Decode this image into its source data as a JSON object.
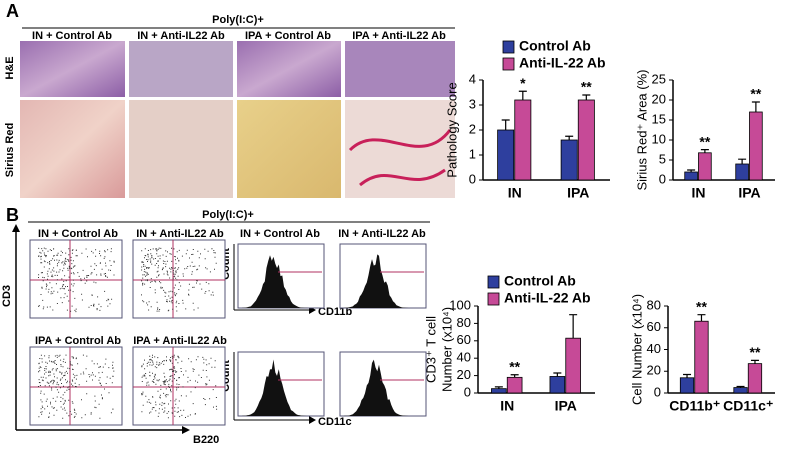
{
  "panel_a": {
    "label": "A",
    "treatment": "Poly(I:C)+",
    "columns": [
      "IN + Control Ab",
      "IN + Anti-IL22 Ab",
      "IPA + Control Ab",
      "IPA + Anti-IL22 Ab"
    ],
    "rows": [
      "H&E",
      "Sirius Red"
    ]
  },
  "panel_b": {
    "label": "B",
    "treatment": "Poly(I:C)+",
    "scatter_titles": [
      "IN + Control Ab",
      "IN + Anti-IL22 Ab",
      "IPA + Control Ab",
      "IPA + Anti-IL22 Ab"
    ],
    "scatter_y_axis": "CD3",
    "scatter_x_axis": "B220",
    "histogram_titles": [
      "IN + Control Ab",
      "IN + Anti-IL22 Ab"
    ],
    "histogram_y_axis": "Count",
    "histogram_x_axes": [
      "CD11b",
      "CD11c"
    ]
  },
  "chart_data": [
    {
      "type": "bar",
      "ylabel": [
        "Pathology Score"
      ],
      "categories": [
        "IN",
        "IPA"
      ],
      "ylim": [
        0,
        4
      ],
      "yticks": [
        0,
        1,
        2,
        3,
        4
      ],
      "legend": true,
      "series": [
        {
          "name": "Control Ab",
          "color": "#2e3f9e",
          "values": [
            2.0,
            1.6
          ],
          "errors": [
            0.4,
            0.15
          ]
        },
        {
          "name": "Anti-IL-22 Ab",
          "color": "#c64a97",
          "values": [
            3.2,
            3.2
          ],
          "errors": [
            0.35,
            0.2
          ],
          "annotations": [
            "*",
            "**"
          ]
        }
      ]
    },
    {
      "type": "bar",
      "ylabel": [
        "Sirius Red⁺ Area (%)"
      ],
      "categories": [
        "IN",
        "IPA"
      ],
      "ylim": [
        0,
        25
      ],
      "yticks": [
        0,
        5,
        10,
        15,
        20,
        25
      ],
      "legend": false,
      "series": [
        {
          "color": "#2e3f9e",
          "values": [
            2,
            4
          ],
          "errors": [
            0.5,
            1.2
          ]
        },
        {
          "color": "#c64a97",
          "values": [
            6.8,
            17
          ],
          "errors": [
            0.8,
            2.5
          ],
          "annotations": [
            "**",
            "**"
          ]
        }
      ]
    },
    {
      "type": "bar",
      "ylabel": [
        "CD3⁺ T cell",
        "Number (x10⁴)"
      ],
      "categories": [
        "IN",
        "IPA"
      ],
      "ylim": [
        0,
        100
      ],
      "yticks": [
        0,
        20,
        40,
        60,
        80,
        100
      ],
      "legend": true,
      "series": [
        {
          "name": "Control Ab",
          "color": "#2e3f9e",
          "values": [
            5,
            19
          ],
          "errors": [
            2,
            4
          ]
        },
        {
          "name": "Anti-IL-22 Ab",
          "color": "#c64a97",
          "values": [
            18,
            63
          ],
          "errors": [
            3,
            27
          ],
          "annotations": [
            "**",
            null
          ]
        }
      ]
    },
    {
      "type": "bar",
      "ylabel": [
        "Cell Number (x10⁴)"
      ],
      "categories": [
        "CD11b⁺",
        "CD11c⁺"
      ],
      "ylim": [
        0,
        80
      ],
      "yticks": [
        0,
        20,
        40,
        60,
        80
      ],
      "legend": false,
      "series": [
        {
          "color": "#2e3f9e",
          "values": [
            14,
            5
          ],
          "errors": [
            3,
            1
          ]
        },
        {
          "color": "#c64a97",
          "values": [
            66,
            27
          ],
          "errors": [
            6,
            3
          ],
          "annotations": [
            "**",
            "**"
          ]
        }
      ]
    }
  ]
}
